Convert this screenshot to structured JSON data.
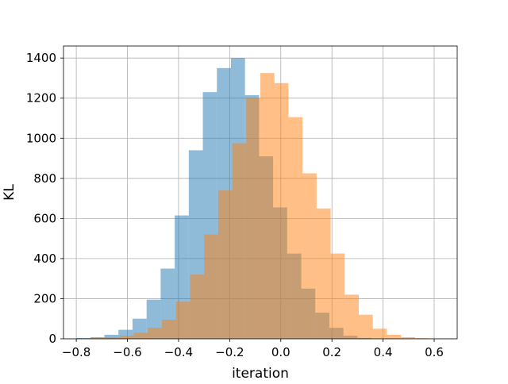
{
  "chart_data": {
    "type": "histogram",
    "title": "",
    "xlabel": "iteration",
    "ylabel": "KL",
    "xlim": [
      -0.85,
      0.69
    ],
    "ylim": [
      0,
      1460
    ],
    "grid": true,
    "legend": "none",
    "xticks": [
      -0.8,
      -0.6,
      -0.4,
      -0.2,
      0.0,
      0.2,
      0.4,
      0.6
    ],
    "xtick_labels": [
      "−0.8",
      "−0.6",
      "−0.4",
      "−0.2",
      "0.0",
      "0.2",
      "0.4",
      "0.6"
    ],
    "yticks": [
      0,
      200,
      400,
      600,
      800,
      1000,
      1200,
      1400
    ],
    "ytick_labels": [
      "0",
      "200",
      "400",
      "600",
      "800",
      "1000",
      "1200",
      "1400"
    ],
    "series": [
      {
        "color": "#1f77b4",
        "alpha": 0.5,
        "bin_edges": [
          -0.8,
          -0.745,
          -0.69,
          -0.635,
          -0.58,
          -0.525,
          -0.47,
          -0.415,
          -0.36,
          -0.305,
          -0.25,
          -0.195,
          -0.14,
          -0.085,
          -0.03,
          0.025,
          0.08,
          0.135,
          0.19,
          0.245,
          0.3,
          0.355
        ],
        "counts": [
          4,
          8,
          20,
          45,
          100,
          195,
          350,
          615,
          940,
          1230,
          1350,
          1400,
          1215,
          910,
          655,
          425,
          250,
          130,
          55,
          15,
          4
        ]
      },
      {
        "color": "#ff7f0e",
        "alpha": 0.5,
        "bin_edges": [
          -0.74,
          -0.685,
          -0.63,
          -0.575,
          -0.52,
          -0.465,
          -0.41,
          -0.355,
          -0.3,
          -0.245,
          -0.19,
          -0.135,
          -0.08,
          -0.025,
          0.03,
          0.085,
          0.14,
          0.195,
          0.25,
          0.305,
          0.36,
          0.415,
          0.47,
          0.525,
          0.58
        ],
        "counts": [
          4,
          8,
          15,
          30,
          55,
          95,
          185,
          320,
          520,
          740,
          975,
          1200,
          1325,
          1275,
          1105,
          825,
          650,
          425,
          220,
          120,
          50,
          20,
          8,
          3
        ]
      }
    ]
  }
}
